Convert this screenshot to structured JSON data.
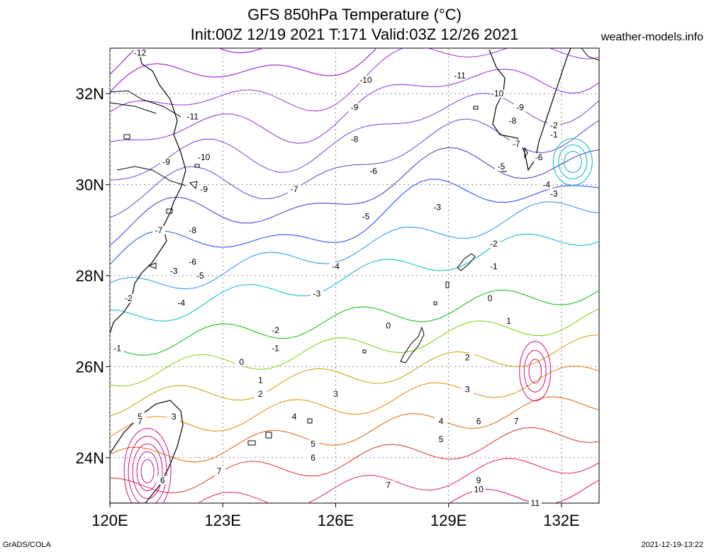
{
  "title_line1": "GFS 850hPa Temperature (°C)",
  "title_line2": "Init:00Z 12/19 2021 T:171 Valid:03Z 12/26 2021",
  "site": "weather-models.info",
  "footer_left": "GrADS/COLA",
  "footer_right": "2021-12-19-13:22",
  "axes": {
    "lon_ticks": [
      "120E",
      "123E",
      "126E",
      "129E",
      "132E"
    ],
    "lat_ticks": [
      "32N",
      "30N",
      "28N",
      "26N",
      "24N"
    ],
    "lon_range": [
      120,
      133
    ],
    "lat_range": [
      23,
      33
    ]
  },
  "contour_labels": [
    {
      "text": "-12",
      "lon": 120.8,
      "lat": 32.9
    },
    {
      "text": "-11",
      "lon": 122.2,
      "lat": 31.5
    },
    {
      "text": "-11",
      "lon": 129.3,
      "lat": 32.4
    },
    {
      "text": "-10",
      "lon": 126.8,
      "lat": 32.3
    },
    {
      "text": "-10",
      "lon": 130.3,
      "lat": 32.0
    },
    {
      "text": "-10",
      "lon": 122.5,
      "lat": 30.6
    },
    {
      "text": "-9",
      "lon": 126.5,
      "lat": 31.7
    },
    {
      "text": "-9",
      "lon": 121.5,
      "lat": 30.5
    },
    {
      "text": "-9",
      "lon": 122.5,
      "lat": 29.9
    },
    {
      "text": "-9",
      "lon": 130.9,
      "lat": 31.7
    },
    {
      "text": "-8",
      "lon": 126.5,
      "lat": 31.0
    },
    {
      "text": "-8",
      "lon": 130.7,
      "lat": 31.4
    },
    {
      "text": "-8",
      "lon": 122.2,
      "lat": 29.0
    },
    {
      "text": "-7",
      "lon": 124.9,
      "lat": 29.9
    },
    {
      "text": "-7",
      "lon": 130.8,
      "lat": 30.9
    },
    {
      "text": "-7",
      "lon": 121.3,
      "lat": 29.0
    },
    {
      "text": "-6",
      "lon": 127.0,
      "lat": 30.3
    },
    {
      "text": "-6",
      "lon": 131.4,
      "lat": 30.6
    },
    {
      "text": "-6",
      "lon": 122.2,
      "lat": 28.3
    },
    {
      "text": "-5",
      "lon": 126.8,
      "lat": 29.3
    },
    {
      "text": "-5",
      "lon": 130.4,
      "lat": 30.4
    },
    {
      "text": "-5",
      "lon": 122.4,
      "lat": 28.0
    },
    {
      "text": "-4",
      "lon": 126.0,
      "lat": 28.2
    },
    {
      "text": "-4",
      "lon": 131.6,
      "lat": 30.0
    },
    {
      "text": "-4",
      "lon": 121.9,
      "lat": 27.4
    },
    {
      "text": "-3",
      "lon": 128.7,
      "lat": 29.5
    },
    {
      "text": "-3",
      "lon": 125.5,
      "lat": 27.6
    },
    {
      "text": "-3",
      "lon": 131.8,
      "lat": 29.8
    },
    {
      "text": "-3",
      "lon": 121.7,
      "lat": 28.1
    },
    {
      "text": "-2",
      "lon": 130.2,
      "lat": 28.7
    },
    {
      "text": "-2",
      "lon": 124.4,
      "lat": 26.8
    },
    {
      "text": "-2",
      "lon": 131.8,
      "lat": 31.3
    },
    {
      "text": "-2",
      "lon": 120.5,
      "lat": 27.5
    },
    {
      "text": "-1",
      "lon": 130.2,
      "lat": 28.2
    },
    {
      "text": "-1",
      "lon": 124.4,
      "lat": 26.4
    },
    {
      "text": "-1",
      "lon": 131.8,
      "lat": 31.1
    },
    {
      "text": "-1",
      "lon": 120.2,
      "lat": 26.4
    },
    {
      "text": "0",
      "lon": 130.1,
      "lat": 27.5
    },
    {
      "text": "0",
      "lon": 127.4,
      "lat": 26.9
    },
    {
      "text": "0",
      "lon": 123.5,
      "lat": 26.1
    },
    {
      "text": "1",
      "lon": 130.6,
      "lat": 27.0
    },
    {
      "text": "1",
      "lon": 124.0,
      "lat": 25.7
    },
    {
      "text": "2",
      "lon": 129.5,
      "lat": 26.2
    },
    {
      "text": "2",
      "lon": 124.0,
      "lat": 25.4
    },
    {
      "text": "3",
      "lon": 129.5,
      "lat": 25.5
    },
    {
      "text": "3",
      "lon": 126.0,
      "lat": 25.4
    },
    {
      "text": "3",
      "lon": 121.7,
      "lat": 24.9
    },
    {
      "text": "4",
      "lon": 128.8,
      "lat": 24.8
    },
    {
      "text": "4",
      "lon": 124.9,
      "lat": 24.9
    },
    {
      "text": "5",
      "lon": 128.8,
      "lat": 24.4
    },
    {
      "text": "5",
      "lon": 125.4,
      "lat": 24.3
    },
    {
      "text": "5",
      "lon": 120.8,
      "lat": 24.9
    },
    {
      "text": "6",
      "lon": 129.8,
      "lat": 24.8
    },
    {
      "text": "6",
      "lon": 125.4,
      "lat": 24.0
    },
    {
      "text": "6",
      "lon": 121.4,
      "lat": 23.5
    },
    {
      "text": "7",
      "lon": 130.8,
      "lat": 24.8
    },
    {
      "text": "7",
      "lon": 122.9,
      "lat": 23.7
    },
    {
      "text": "7",
      "lon": 127.4,
      "lat": 23.4
    },
    {
      "text": "7",
      "lon": 120.8,
      "lat": 24.8
    },
    {
      "text": "9",
      "lon": 129.8,
      "lat": 23.5
    },
    {
      "text": "10",
      "lon": 129.8,
      "lat": 23.3
    },
    {
      "text": "11",
      "lon": 131.3,
      "lat": 23.0
    }
  ],
  "colors": {
    "-12": "#8a2be2",
    "-11": "#8b1ad6",
    "-10": "#8a00b8",
    "-9": "#9400d3",
    "-8": "#9932cc",
    "-7": "#8a2be2",
    "-6": "#7b3fd6",
    "-5": "#6a3fcf",
    "-4": "#3d2fd0",
    "-3": "#1f40ff",
    "-2": "#1e90ff",
    "-1": "#00b7c3",
    "0": "#00c000",
    "1": "#7fcc00",
    "2": "#c8a000",
    "3": "#e08a00",
    "4": "#e06000",
    "5": "#e03030",
    "6": "#e0206a",
    "7": "#d01080",
    "9": "#d00080",
    "10": "#c00090",
    "11": "#c000a0"
  }
}
